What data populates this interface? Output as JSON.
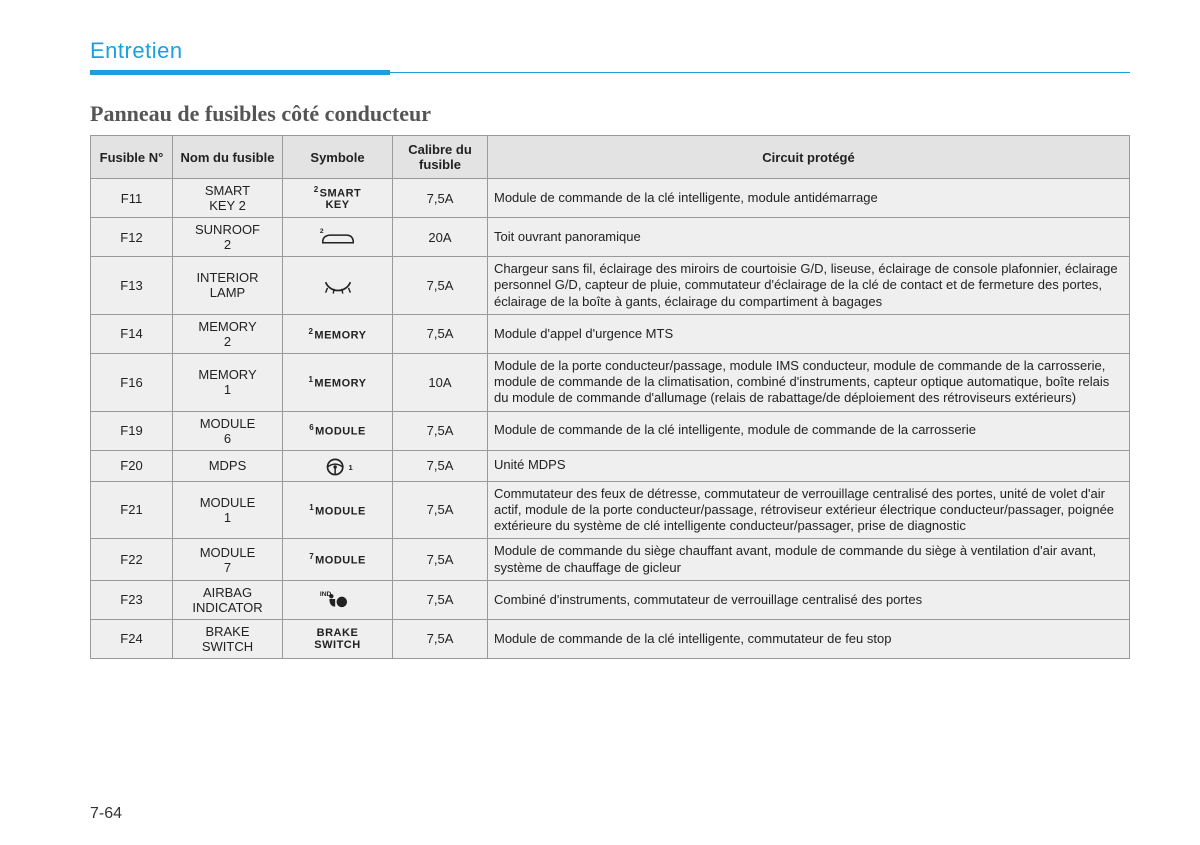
{
  "header": {
    "section": "Entretien",
    "subheading": "Panneau de fusibles côté conducteur",
    "page_number": "7-64",
    "accent_color": "#1ba0de"
  },
  "table": {
    "columns": [
      "Fusible N°",
      "Nom du fusible",
      "Symbole",
      "Calibre du fusible",
      "Circuit protégé"
    ],
    "rows": [
      {
        "num": "F11",
        "name": "SMART KEY 2",
        "symbol": {
          "type": "text",
          "sup": "2",
          "text": "SMART KEY"
        },
        "rating": "7,5A",
        "desc": "Module de commande de la clé intelligente, module antidémarrage"
      },
      {
        "num": "F12",
        "name": "SUNROOF 2",
        "symbol": {
          "type": "icon",
          "icon": "car",
          "sup": "2"
        },
        "rating": "20A",
        "desc": "Toit ouvrant panoramique"
      },
      {
        "num": "F13",
        "name": "INTERIOR LAMP",
        "symbol": {
          "type": "icon",
          "icon": "lamp"
        },
        "rating": "7,5A",
        "desc": "Chargeur sans fil, éclairage des miroirs de courtoisie G/D, liseuse, éclairage de console plafonnier, éclairage personnel G/D, capteur de pluie, commutateur d'éclairage de la clé de contact et de fermeture des portes, éclairage de la boîte à gants, éclairage du compartiment à bagages"
      },
      {
        "num": "F14",
        "name": "MEMORY 2",
        "symbol": {
          "type": "text",
          "sup": "2",
          "text": "MEMORY"
        },
        "rating": "7,5A",
        "desc": "Module d'appel d'urgence MTS"
      },
      {
        "num": "F16",
        "name": "MEMORY 1",
        "symbol": {
          "type": "text",
          "sup": "1",
          "text": "MEMORY"
        },
        "rating": "10A",
        "desc": "Module de la porte conducteur/passage, module IMS conducteur, module de commande de la carrosserie, module de commande de la climatisation, combiné d'instruments, capteur optique automatique, boîte relais du module de commande d'allumage (relais de rabattage/de déploiement des rétroviseurs extérieurs)"
      },
      {
        "num": "F19",
        "name": "MODULE 6",
        "symbol": {
          "type": "text",
          "sup": "6",
          "text": "MODULE"
        },
        "rating": "7,5A",
        "desc": "Module de commande de la clé intelligente, module de commande de la carrosserie"
      },
      {
        "num": "F20",
        "name": "MDPS",
        "symbol": {
          "type": "icon",
          "icon": "wheel",
          "side": "1"
        },
        "rating": "7,5A",
        "desc": "Unité MDPS"
      },
      {
        "num": "F21",
        "name": "MODULE 1",
        "symbol": {
          "type": "text",
          "sup": "1",
          "text": "MODULE"
        },
        "rating": "7,5A",
        "desc": "Commutateur des feux de détresse, commutateur de verrouillage centralisé des portes, unité de volet d'air actif, module de la porte conducteur/passage, rétroviseur extérieur électrique conducteur/passager, poignée extérieure du système de clé intelligente conducteur/passager, prise de diagnostic"
      },
      {
        "num": "F22",
        "name": "MODULE 7",
        "symbol": {
          "type": "text",
          "sup": "7",
          "text": "MODULE"
        },
        "rating": "7,5A",
        "desc": "Module de commande du siège chauffant avant, module de commande du siège à ventilation d'air avant, système de chauffage de gicleur"
      },
      {
        "num": "F23",
        "name": "AIRBAG INDICATOR",
        "symbol": {
          "type": "icon",
          "icon": "airbag",
          "sup": "IND"
        },
        "rating": "7,5A",
        "desc": "Combiné d'instruments, commutateur de verrouillage centralisé des portes"
      },
      {
        "num": "F24",
        "name": "BRAKE SWITCH",
        "symbol": {
          "type": "text",
          "text": "BRAKE SWITCH"
        },
        "rating": "7,5A",
        "desc": "Module de commande de la clé intelligente, commutateur de feu stop"
      }
    ]
  }
}
